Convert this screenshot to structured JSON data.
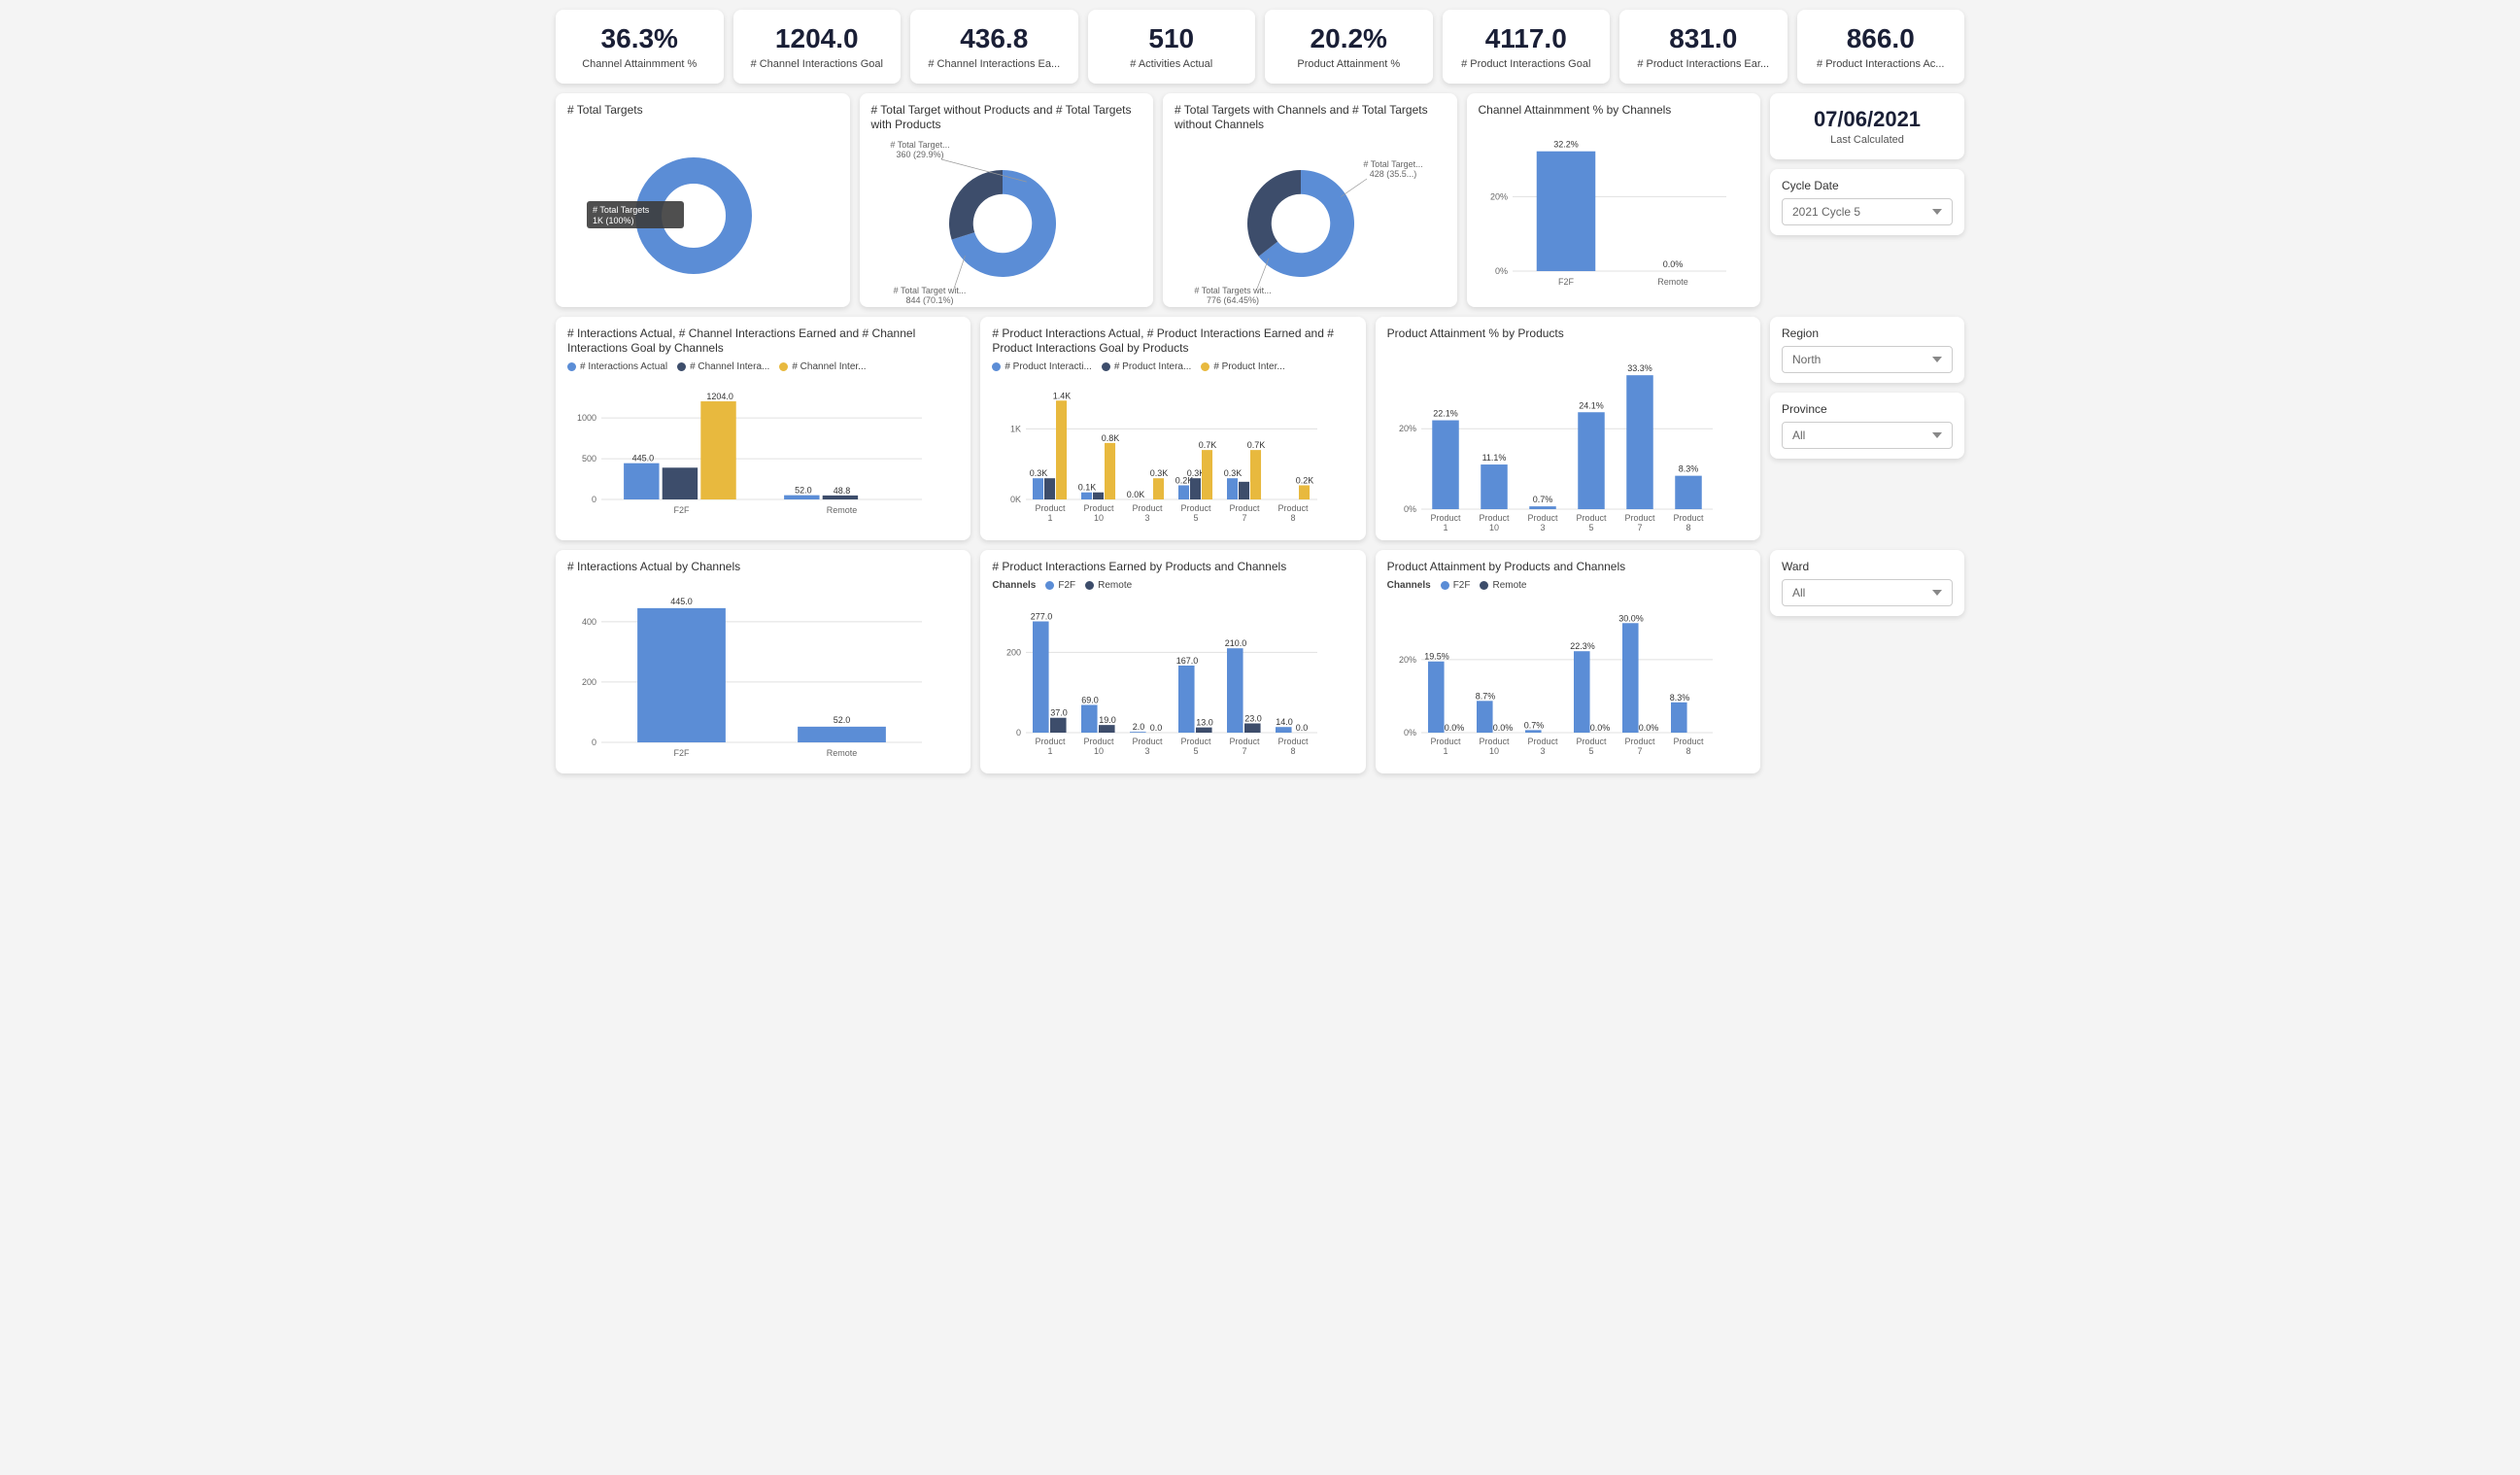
{
  "colors": {
    "blue": "#5b8dd6",
    "darkblue": "#3d4d6b",
    "yellow": "#e8b93e",
    "grid": "#e0e0e0",
    "axis_text": "#666",
    "card_bg": "#ffffff",
    "kpi_text": "#1a1f36"
  },
  "kpis": [
    {
      "value": "36.3%",
      "label": "Channel Attainmment %"
    },
    {
      "value": "1204.0",
      "label": "# Channel Interactions Goal"
    },
    {
      "value": "436.8",
      "label": "# Channel Interactions Ea..."
    },
    {
      "value": "510",
      "label": "# Activities Actual"
    },
    {
      "value": "20.2%",
      "label": "Product Attainment %"
    },
    {
      "value": "4117.0",
      "label": "# Product Interactions Goal"
    },
    {
      "value": "831.0",
      "label": "# Product Interactions Ear..."
    },
    {
      "value": "866.0",
      "label": "# Product Interactions Ac..."
    }
  ],
  "last_calc": {
    "date": "07/06/2021",
    "label": "Last Calculated"
  },
  "filters": {
    "cycle": {
      "label": "Cycle Date",
      "value": "2021 Cycle 5"
    },
    "region": {
      "label": "Region",
      "value": "North"
    },
    "province": {
      "label": "Province",
      "value": "All"
    },
    "ward": {
      "label": "Ward",
      "value": "All"
    }
  },
  "donut1": {
    "title": "# Total Targets",
    "tooltip": "# Total Targets\n1K (100%)",
    "segments": [
      {
        "pct": 100,
        "color": "#5b8dd6"
      }
    ]
  },
  "donut2": {
    "title": "# Total Target without Products and # Total Targets with Products",
    "labels": {
      "top": "# Total Target...\n360 (29.9%)",
      "bottom": "# Total Target wit...\n844 (70.1%)"
    },
    "segments": [
      {
        "pct": 70.1,
        "color": "#5b8dd6"
      },
      {
        "pct": 29.9,
        "color": "#3d4d6b"
      }
    ]
  },
  "donut3": {
    "title": "# Total Targets with Channels and # Total Targets without Channels",
    "labels": {
      "top": "# Total Target...\n428 (35.5...)",
      "bottom": "# Total Targets wit...\n776 (64.45%)"
    },
    "segments": [
      {
        "pct": 64.45,
        "color": "#5b8dd6"
      },
      {
        "pct": 35.55,
        "color": "#3d4d6b"
      }
    ]
  },
  "bar_channel_attain": {
    "title": "Channel Attainmment % by Channels",
    "yticks": [
      0,
      20
    ],
    "ymax": 35,
    "ysuffix": "%",
    "categories": [
      "F2F",
      "Remote"
    ],
    "values": [
      32.2,
      0.0
    ],
    "value_labels": [
      "32.2%",
      "0.0%"
    ],
    "color": "#5b8dd6"
  },
  "bar_interactions_chan": {
    "title": "# Interactions Actual, # Channel Interactions Earned and # Channel Interactions Goal by Channels",
    "legend": [
      "# Interactions Actual",
      "# Channel Intera...",
      "# Channel Inter..."
    ],
    "legend_colors": [
      "#5b8dd6",
      "#3d4d6b",
      "#e8b93e"
    ],
    "yticks": [
      0,
      500,
      1000
    ],
    "ymax": 1300,
    "categories": [
      "F2F",
      "Remote"
    ],
    "series": [
      {
        "color": "#5b8dd6",
        "values": [
          445,
          52
        ],
        "labels": [
          "445.0",
          "52.0"
        ]
      },
      {
        "color": "#3d4d6b",
        "values": [
          390,
          48.8
        ],
        "labels": [
          "",
          "48.8"
        ]
      },
      {
        "color": "#e8b93e",
        "values": [
          1204,
          0
        ],
        "labels": [
          "1204.0",
          ""
        ]
      }
    ]
  },
  "bar_prod_interactions": {
    "title": "# Product Interactions Actual, # Product Interactions Earned and # Product Interactions Goal by Products",
    "legend": [
      "# Product Interacti...",
      "# Product Intera...",
      "# Product Inter..."
    ],
    "legend_colors": [
      "#5b8dd6",
      "#3d4d6b",
      "#e8b93e"
    ],
    "yticks": [
      0,
      1
    ],
    "ymax": 1.5,
    "ylabels": [
      "0K",
      "1K"
    ],
    "categories": [
      "Product 1",
      "Product 10",
      "Product 3",
      "Product 5",
      "Product 7",
      "Product 8"
    ],
    "series": [
      {
        "color": "#5b8dd6",
        "values": [
          0.3,
          0.1,
          0.0,
          0.2,
          0.3,
          0.0
        ],
        "labels": [
          "0.3K",
          "0.1K",
          "0.0K",
          "0.2K",
          "0.3K",
          ""
        ]
      },
      {
        "color": "#3d4d6b",
        "values": [
          0.3,
          0.1,
          0.0,
          0.3,
          0.25,
          0.0
        ],
        "labels": [
          "",
          "",
          "",
          "0.3K",
          "",
          ""
        ]
      },
      {
        "color": "#e8b93e",
        "values": [
          1.4,
          0.8,
          0.3,
          0.7,
          0.7,
          0.2
        ],
        "labels": [
          "1.4K",
          "0.8K",
          "0.3K",
          "0.7K",
          "0.7K",
          "0.2K"
        ]
      }
    ]
  },
  "bar_prod_attain_pct": {
    "title": "Product Attainment % by Products",
    "yticks": [
      0,
      20
    ],
    "ymax": 36,
    "ysuffix": "%",
    "categories": [
      "Product 1",
      "Product 10",
      "Product 3",
      "Product 5",
      "Product 7",
      "Product 8"
    ],
    "values": [
      22.1,
      11.1,
      0.7,
      24.1,
      33.3,
      8.3
    ],
    "value_labels": [
      "22.1%",
      "11.1%",
      "0.7%",
      "24.1%",
      "33.3%",
      "8.3%"
    ],
    "color": "#5b8dd6"
  },
  "bar_interactions_actual": {
    "title": "# Interactions Actual by Channels",
    "yticks": [
      0,
      200,
      400
    ],
    "ymax": 480,
    "categories": [
      "F2F",
      "Remote"
    ],
    "values": [
      445,
      52
    ],
    "value_labels": [
      "445.0",
      "52.0"
    ],
    "color": "#5b8dd6"
  },
  "bar_prod_earned_chan": {
    "title": "# Product Interactions Earned by Products and Channels",
    "legend_title": "Channels",
    "legend": [
      "F2F",
      "Remote"
    ],
    "legend_colors": [
      "#5b8dd6",
      "#3d4d6b"
    ],
    "yticks": [
      0,
      200
    ],
    "ymax": 300,
    "categories": [
      "Product 1",
      "Product 10",
      "Product 3",
      "Product 5",
      "Product 7",
      "Product 8"
    ],
    "series": [
      {
        "color": "#5b8dd6",
        "values": [
          277,
          69,
          2,
          167,
          210,
          14
        ],
        "labels": [
          "277.0",
          "69.0",
          "2.0",
          "167.0",
          "210.0",
          "14.0"
        ]
      },
      {
        "color": "#3d4d6b",
        "values": [
          37,
          19,
          0,
          13,
          23,
          0
        ],
        "labels": [
          "37.0",
          "19.0",
          "0.0",
          "13.0",
          "23.0",
          "0.0"
        ]
      }
    ]
  },
  "bar_prod_attain_chan": {
    "title": "Product Attainment by Products and Channels",
    "legend_title": "Channels",
    "legend": [
      "F2F",
      "Remote"
    ],
    "legend_colors": [
      "#5b8dd6",
      "#3d4d6b"
    ],
    "yticks": [
      0,
      20
    ],
    "ymax": 33,
    "ysuffix": "%",
    "categories": [
      "Product 1",
      "Product 10",
      "Product 3",
      "Product 5",
      "Product 7",
      "Product 8"
    ],
    "series": [
      {
        "color": "#5b8dd6",
        "values": [
          19.5,
          8.7,
          0.7,
          22.3,
          30.0,
          8.3
        ],
        "labels": [
          "19.5%",
          "8.7%",
          "0.7%",
          "22.3%",
          "30.0%",
          "8.3%"
        ]
      },
      {
        "color": "#3d4d6b",
        "values": [
          0,
          0,
          0,
          0,
          0,
          0
        ],
        "labels": [
          "0.0%",
          "0.0%",
          "",
          "0.0%",
          "0.0%",
          ""
        ]
      }
    ]
  }
}
